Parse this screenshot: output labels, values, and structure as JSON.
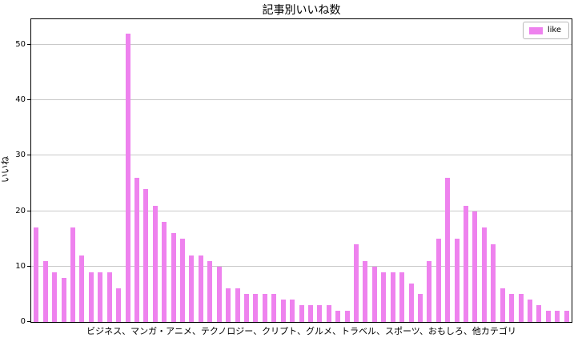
{
  "title": "記事別いいね数",
  "axes": {
    "ylabel": "いいね",
    "xlabel": "ビジネス、マンガ・アニメ、テクノロジー、クリプト、グルメ、トラベル、スポーツ、おもしろ、他カテゴリ",
    "yticks": [
      0,
      10,
      20,
      30,
      40,
      50
    ]
  },
  "legend": {
    "label": "like"
  },
  "colors": {
    "bar": "#EE82EE",
    "grid": "#c9c9c9",
    "spine": "#000000"
  },
  "chart_data": {
    "type": "bar",
    "title": "記事別いいね数",
    "xlabel": "ビジネス、マンガ・アニメ、テクノロジー、クリプト、グルメ、トラベル、スポーツ、おもしろ、他カテゴリ",
    "ylabel": "いいね",
    "ylim": [
      0,
      54.6
    ],
    "yticks": [
      0,
      10,
      20,
      30,
      40,
      50
    ],
    "grid": true,
    "legend_position": "upper right",
    "bar_color": "#EE82EE",
    "series": [
      {
        "name": "like",
        "values": [
          17,
          11,
          9,
          8,
          17,
          12,
          9,
          9,
          9,
          6,
          52,
          26,
          24,
          21,
          18,
          16,
          15,
          12,
          12,
          11,
          10,
          6,
          6,
          5,
          5,
          5,
          5,
          4,
          4,
          3,
          3,
          3,
          3,
          2,
          2,
          14,
          11,
          10,
          9,
          9,
          9,
          7,
          5,
          11,
          15,
          26,
          15,
          21,
          20,
          17,
          14,
          6,
          5,
          5,
          4,
          3,
          2,
          2,
          2
        ]
      }
    ]
  }
}
